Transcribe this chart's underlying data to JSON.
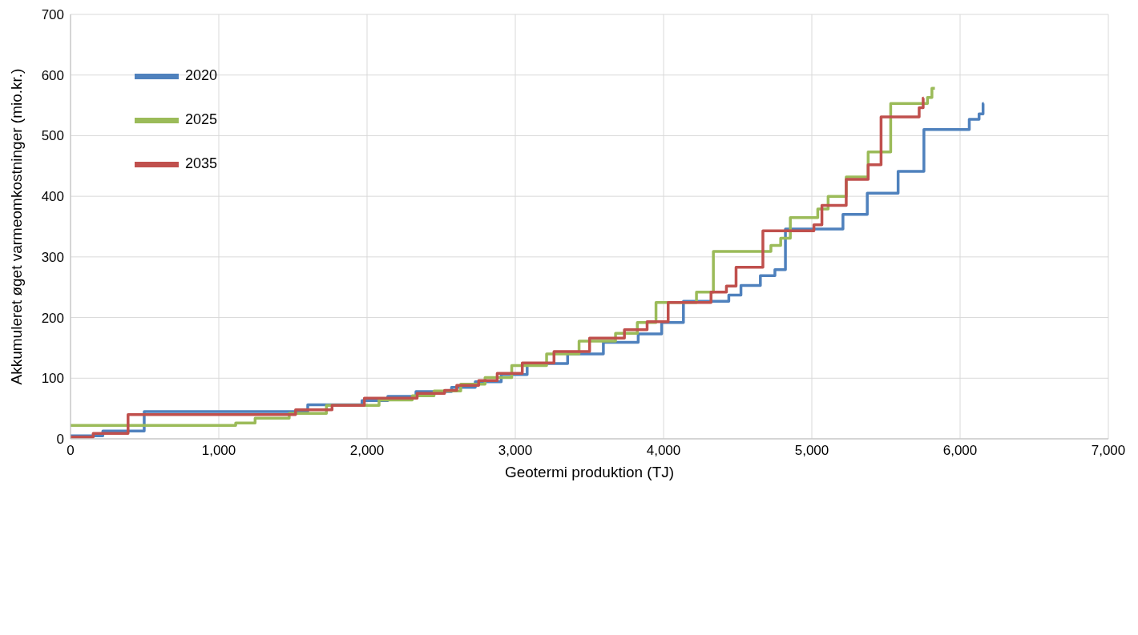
{
  "chart_data": {
    "type": "step",
    "xlabel": "Geotermi  produktion (TJ)",
    "ylabel": "Akkumuleret  øget varmeomkostninger  (mio.kr.)",
    "xlim": [
      0,
      7000
    ],
    "xticks": [
      0,
      {
        "value": 1000,
        "label": "1,000"
      },
      {
        "value": 2000,
        "label": "2,000"
      },
      {
        "value": 3000,
        "label": "3,000"
      },
      {
        "value": 4000,
        "label": "4,000"
      },
      {
        "value": 5000,
        "label": "5,000"
      },
      {
        "value": 6000,
        "label": "6,000"
      },
      {
        "value": 7000,
        "label": "7,000"
      }
    ],
    "ylim": [
      0,
      700
    ],
    "yticks": [
      0,
      100,
      200,
      300,
      400,
      500,
      600,
      700
    ],
    "grid": true,
    "legend": "top left",
    "line_style": "solid",
    "series": [
      {
        "name": "2020",
        "color": "#4f81bd",
        "x": [
          0,
          218,
          497,
          1600,
          1966,
          2140,
          2330,
          2570,
          2730,
          2905,
          3080,
          3353,
          3594,
          3829,
          3987,
          4134,
          4440,
          4522,
          4653,
          4751,
          4822,
          5210,
          5374,
          5582,
          5756,
          6062,
          6128,
          6155,
          6160
        ],
        "values": [
          5,
          13,
          45,
          56,
          63,
          70,
          78,
          85,
          94,
          106,
          124,
          140,
          159,
          173,
          192,
          227,
          237,
          253,
          269,
          279,
          346,
          370,
          405,
          441,
          510,
          527,
          536,
          553,
          553
        ]
      },
      {
        "name": "2025",
        "color": "#9bbb59",
        "x": [
          0,
          1114,
          1245,
          1475,
          1726,
          2081,
          2305,
          2452,
          2632,
          2796,
          2976,
          3211,
          3430,
          3676,
          3823,
          3949,
          4222,
          4336,
          4724,
          4790,
          4855,
          5040,
          5110,
          5232,
          5380,
          5532,
          5780,
          5810,
          5830
        ],
        "values": [
          22,
          26,
          34,
          42,
          55,
          64,
          71,
          79,
          90,
          101,
          121,
          140,
          161,
          174,
          192,
          225,
          242,
          309,
          319,
          331,
          365,
          379,
          400,
          432,
          473,
          553,
          563,
          578,
          578
        ]
      },
      {
        "name": "2035",
        "color": "#c0504d",
        "x": [
          0,
          153,
          388,
          1518,
          1764,
          1982,
          2338,
          2523,
          2605,
          2753,
          2878,
          3047,
          3261,
          3501,
          3736,
          3889,
          4031,
          4320,
          4424,
          4489,
          4670,
          5014,
          5068,
          5232,
          5380,
          5467,
          5724,
          5751,
          5755
        ],
        "values": [
          3,
          9,
          40,
          48,
          55,
          67,
          75,
          80,
          88,
          96,
          108,
          125,
          144,
          166,
          180,
          193,
          225,
          242,
          252,
          283,
          343,
          353,
          385,
          428,
          452,
          531,
          546,
          562,
          562
        ]
      }
    ]
  }
}
